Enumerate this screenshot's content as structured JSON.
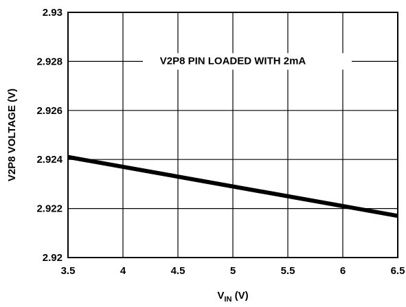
{
  "chart_data": {
    "type": "line",
    "xlabel_main": "V",
    "xlabel_sub": "IN",
    "xlabel_unit": " (V)",
    "ylabel": "V2P8 VOLTAGE (V)",
    "xlim": [
      3.5,
      6.5
    ],
    "ylim": [
      2.92,
      2.93
    ],
    "x_ticks": [
      "3.5",
      "4",
      "4.5",
      "5",
      "5.5",
      "6",
      "6.5"
    ],
    "y_ticks": [
      "2.92",
      "2.922",
      "2.924",
      "2.926",
      "2.928",
      "2.93"
    ],
    "grid": true,
    "annotation": "V2P8 PIN LOADED WITH 2mA",
    "series": [
      {
        "x": [
          3.5,
          6.5
        ],
        "y": [
          2.9241,
          2.9217
        ]
      }
    ],
    "line_color": "#000000"
  }
}
